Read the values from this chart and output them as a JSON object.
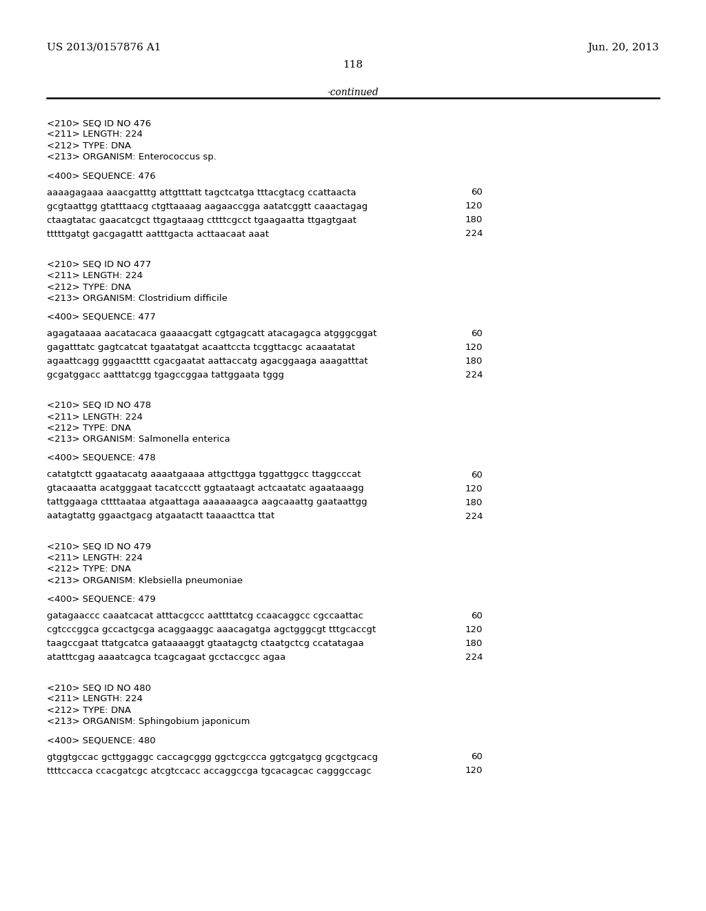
{
  "background_color": "#ffffff",
  "header_left": "US 2013/0157876 A1",
  "header_right": "Jun. 20, 2013",
  "page_number": "118",
  "continued_text": "-continued",
  "entries": [
    {
      "header_lines": [
        "<210> SEQ ID NO 476",
        "<211> LENGTH: 224",
        "<212> TYPE: DNA",
        "<213> ORGANISM: Enterococcus sp."
      ],
      "sequence_label": "<400> SEQUENCE: 476",
      "sequence_lines": [
        [
          "aaaagagaaa aaacgatttg attgtttatt tagctcatga tttacgtacg ccattaacta",
          "60"
        ],
        [
          "gcgtaattgg gtatttaacg ctgttaaaag aagaaccgga aatatcggtt caaactagag",
          "120"
        ],
        [
          "ctaagtatac gaacatcgct ttgagtaaag cttttcgcct tgaagaatta ttgagtgaat",
          "180"
        ],
        [
          "tttttgatgt gacgagattt aatttgacta acttaacaat aaat",
          "224"
        ]
      ]
    },
    {
      "header_lines": [
        "<210> SEQ ID NO 477",
        "<211> LENGTH: 224",
        "<212> TYPE: DNA",
        "<213> ORGANISM: Clostridium difficile"
      ],
      "sequence_label": "<400> SEQUENCE: 477",
      "sequence_lines": [
        [
          "agagataaaa aacatacaca gaaaacgatt cgtgagcatt atacagagca atgggcggat",
          "60"
        ],
        [
          "gagatttatc gagtcatcat tgaatatgat acaattccta tcggttacgc acaaatatat",
          "120"
        ],
        [
          "agaattcagg gggaactttt cgacgaatat aattaccatg agacggaaga aaagatttat",
          "180"
        ],
        [
          "gcgatggacc aatttatcgg tgagccggaa tattggaata tggg",
          "224"
        ]
      ]
    },
    {
      "header_lines": [
        "<210> SEQ ID NO 478",
        "<211> LENGTH: 224",
        "<212> TYPE: DNA",
        "<213> ORGANISM: Salmonella enterica"
      ],
      "sequence_label": "<400> SEQUENCE: 478",
      "sequence_lines": [
        [
          "catatgtctt ggaatacatg aaaatgaaaa attgcttgga tggattggcc ttaggcccat",
          "60"
        ],
        [
          "gtacaaatta acatgggaat tacatccctt ggtaataagt actcaatatc agaataaagg",
          "120"
        ],
        [
          "tattggaaga cttttaataa atgaattaga aaaaaaagca aagcaaattg gaataattgg",
          "180"
        ],
        [
          "aatagtattg ggaactgacg atgaatactt taaaacttca ttat",
          "224"
        ]
      ]
    },
    {
      "header_lines": [
        "<210> SEQ ID NO 479",
        "<211> LENGTH: 224",
        "<212> TYPE: DNA",
        "<213> ORGANISM: Klebsiella pneumoniae"
      ],
      "sequence_label": "<400> SEQUENCE: 479",
      "sequence_lines": [
        [
          "gatagaaccc caaatcacat atttacgccc aattttatcg ccaacaggcc cgccaattac",
          "60"
        ],
        [
          "cgtcccggca gccactgcga acaggaaggc aaacagatga agctgggcgt tttgcaccgt",
          "120"
        ],
        [
          "taagccgaat ttatgcatca gataaaaggt gtaatagctg ctaatgctcg ccatatagaa",
          "180"
        ],
        [
          "atatttcgag aaaatcagca tcagcagaat gcctaccgcc agaa",
          "224"
        ]
      ]
    },
    {
      "header_lines": [
        "<210> SEQ ID NO 480",
        "<211> LENGTH: 224",
        "<212> TYPE: DNA",
        "<213> ORGANISM: Sphingobium japonicum"
      ],
      "sequence_label": "<400> SEQUENCE: 480",
      "sequence_lines": [
        [
          "gtggtgccac gcttggaggc caccagcggg ggctcgccca ggtcgatgcg gcgctgcacg",
          "60"
        ],
        [
          "ttttccacca ccacgatcgc atcgtccacc accaggccga tgcacagcac cagggccagc",
          "120"
        ]
      ]
    }
  ]
}
